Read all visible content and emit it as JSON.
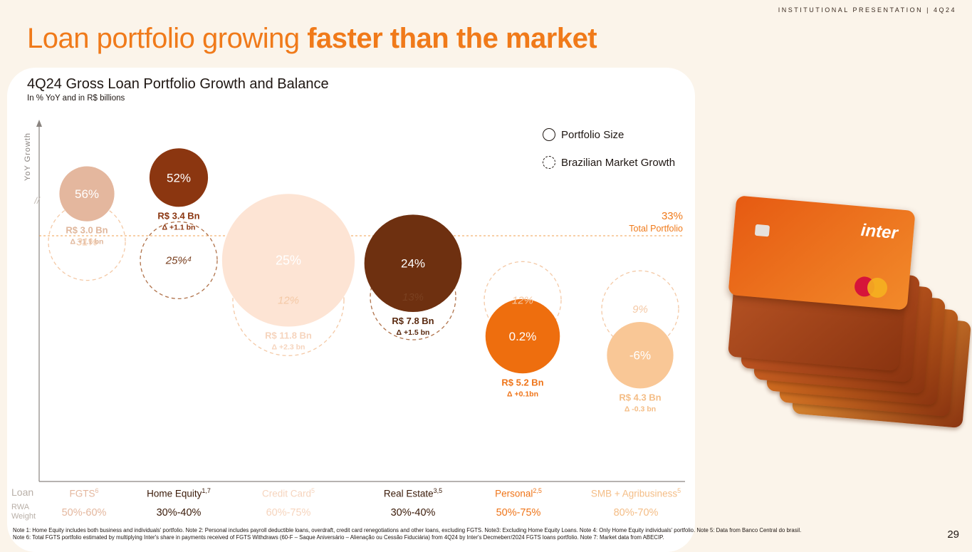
{
  "header_tag": "INSTITUTIONAL PRESENTATION | 4Q24",
  "title": {
    "regular": "Loan portfolio growing ",
    "bold": "faster than the market"
  },
  "chart_title": "4Q24 Gross Loan Portfolio Growth and Balance",
  "chart_subtitle": "In % YoY and in R$ billions",
  "legend": {
    "portfolio": "Portfolio Size",
    "market": "Brazilian Market Growth"
  },
  "total": {
    "pct": "33%",
    "label": "Total Portfolio"
  },
  "row_labels": {
    "loan": "Loan",
    "rwa": "RWA",
    "weight": "Weight"
  },
  "chart_data": {
    "type": "bubble",
    "ylabel": "YoY Growth",
    "axis_break": "//",
    "reference_line": {
      "value": 33,
      "label": "Total Portfolio"
    },
    "categories": [
      {
        "name": "FGTS",
        "sup": "6",
        "growth": 56,
        "growth_label": "56%",
        "balance_label": "R$ 3.0 Bn",
        "delta_label": "Δ +1.1 bn",
        "market": 31,
        "market_label": "31%",
        "rwa": "50%-60%",
        "color": "#e4b79e",
        "text_color": "#ffffff",
        "label_color": "#e0b79c"
      },
      {
        "name": "Home Equity",
        "sup": "1,7",
        "growth": 52,
        "growth_label": "52%",
        "balance_label": "R$ 3.4 Bn",
        "delta_label": "Δ +1.1 bn",
        "market": 25,
        "market_label": "25%⁴",
        "rwa": "30%-40%",
        "color": "#8b3610",
        "text_color": "#ffffff",
        "label_color": "#8b3610"
      },
      {
        "name": "Credit Card",
        "sup": "5",
        "growth": 25,
        "growth_label": "25%",
        "balance_label": "R$ 11.8 Bn",
        "delta_label": "Δ +2.3 bn",
        "market": 12,
        "market_label": "12%",
        "rwa": "60%-75%",
        "color": "#fde4d4",
        "text_color": "#ffffff",
        "label_color": "#f6d4bd"
      },
      {
        "name": "Real Estate",
        "sup": "3,5",
        "growth": 24,
        "growth_label": "24%",
        "balance_label": "R$ 7.8 Bn",
        "delta_label": "Δ +1.5 bn",
        "market": 13,
        "market_label": "13%",
        "rwa": "30%-40%",
        "color": "#6e3010",
        "text_color": "#ffffff",
        "label_color": "#5a2a10"
      },
      {
        "name": "Personal",
        "sup": "2,5",
        "growth": 0.2,
        "growth_label": "0.2%",
        "balance_label": "R$ 5.2 Bn",
        "delta_label": "Δ +0.1bn",
        "market": 12,
        "market_label": "12%",
        "rwa": "50%-75%",
        "color": "#ee6e0e",
        "text_color": "#ffffff",
        "label_color": "#ef7418"
      },
      {
        "name": "SMB + Agribusiness",
        "sup": "5",
        "growth": -6,
        "growth_label": "-6%",
        "balance_label": "R$ 4.3 Bn",
        "delta_label": "Δ -0.3 bn",
        "market": 9,
        "market_label": "9%",
        "rwa": "80%-70%",
        "color": "#f9c796",
        "text_color": "#ffffff",
        "label_color": "#f4bd86"
      }
    ]
  },
  "card_brand": "inter",
  "notes": [
    "Note 1: Home Equity includes both business and individuals' portfolio. Note 2: Personal includes payroll deductible loans, overdraft, credit card renegotiations and other loans, excluding FGTS. Note3: Excluding Home Equity Loans. Note 4: Only Home Equity individuals' portfolio. Note 5: Data from Banco Central do brasil.",
    "Note 6: Total FGTS portfolio estimated by multiplying Inter's share in payments received of FGTS Withdraws (60-F – Saque Aniversário – Alienação ou Cessão Fiduciária) from 4Q24 by Inter's Decmeberr/2024 FGTS loans portfolio. Note 7: Market data from ABECIP."
  ],
  "page_number": "29"
}
